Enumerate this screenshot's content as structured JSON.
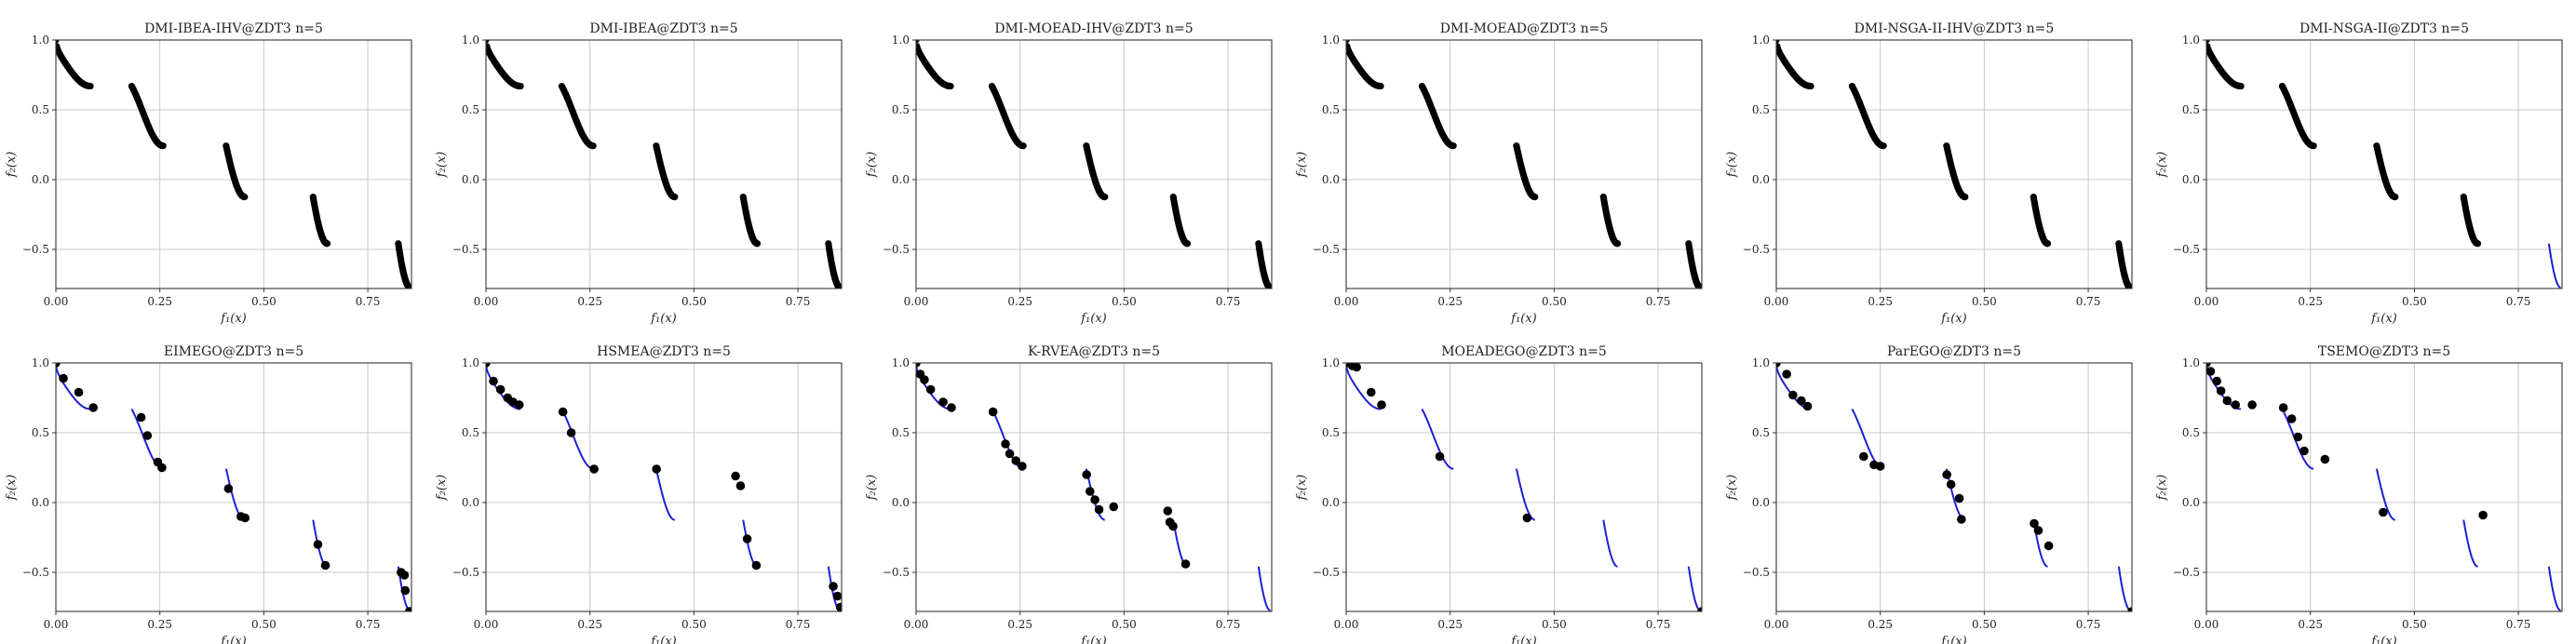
{
  "shared": {
    "xlabel": "f₁(x)",
    "ylabel": "f₂(x)",
    "xticks": [
      "0.00",
      "0.25",
      "0.50",
      "0.75"
    ],
    "yticks": [
      "1.0",
      "0.5",
      "0.0",
      "−0.5"
    ],
    "front_color": "#1f1fd6",
    "point_color": "#000000"
  },
  "chart_data": [
    {
      "type": "scatter",
      "title": "DMI-IBEA-IHV@ZDT3 n=5",
      "xlabel": "f₁(x)",
      "ylabel": "f₂(x)",
      "xlim": [
        0,
        0.855
      ],
      "ylim": [
        -0.78,
        1.0
      ],
      "grid": true,
      "dense_segments": [
        0,
        1,
        2,
        3,
        4
      ],
      "points": []
    },
    {
      "type": "scatter",
      "title": "DMI-IBEA@ZDT3 n=5",
      "xlabel": "f₁(x)",
      "ylabel": "f₂(x)",
      "xlim": [
        0,
        0.855
      ],
      "ylim": [
        -0.78,
        1.0
      ],
      "grid": true,
      "dense_segments": [
        0,
        1,
        2,
        3,
        4
      ],
      "points": []
    },
    {
      "type": "scatter",
      "title": "DMI-MOEAD-IHV@ZDT3 n=5",
      "xlabel": "f₁(x)",
      "ylabel": "f₂(x)",
      "xlim": [
        0,
        0.855
      ],
      "ylim": [
        -0.78,
        1.0
      ],
      "grid": true,
      "dense_segments": [
        0,
        1,
        2,
        3,
        4
      ],
      "points": []
    },
    {
      "type": "scatter",
      "title": "DMI-MOEAD@ZDT3 n=5",
      "xlabel": "f₁(x)",
      "ylabel": "f₂(x)",
      "xlim": [
        0,
        0.855
      ],
      "ylim": [
        -0.78,
        1.0
      ],
      "grid": true,
      "dense_segments": [
        0,
        1,
        2,
        3,
        4
      ],
      "points": []
    },
    {
      "type": "scatter",
      "title": "DMI-NSGA-II-IHV@ZDT3 n=5",
      "xlabel": "f₁(x)",
      "ylabel": "f₂(x)",
      "xlim": [
        0,
        0.855
      ],
      "ylim": [
        -0.78,
        1.0
      ],
      "grid": true,
      "dense_segments": [
        0,
        1,
        2,
        3,
        4
      ],
      "points": []
    },
    {
      "type": "scatter",
      "title": "DMI-NSGA-II@ZDT3 n=5",
      "xlabel": "f₁(x)",
      "ylabel": "f₂(x)",
      "xlim": [
        0,
        0.855
      ],
      "ylim": [
        -0.78,
        1.0
      ],
      "grid": true,
      "dense_segments": [
        0,
        1,
        2,
        3
      ],
      "points": []
    },
    {
      "type": "scatter",
      "title": "EIMEGO@ZDT3 n=5",
      "xlabel": "f₁(x)",
      "ylabel": "f₂(x)",
      "xlim": [
        0,
        0.855
      ],
      "ylim": [
        -0.78,
        1.0
      ],
      "grid": true,
      "dense_segments": [],
      "points": [
        [
          0.0,
          1.0
        ],
        [
          0.018,
          0.89
        ],
        [
          0.055,
          0.79
        ],
        [
          0.09,
          0.68
        ],
        [
          0.205,
          0.61
        ],
        [
          0.22,
          0.48
        ],
        [
          0.245,
          0.29
        ],
        [
          0.255,
          0.25
        ],
        [
          0.415,
          0.1
        ],
        [
          0.445,
          -0.1
        ],
        [
          0.455,
          -0.11
        ],
        [
          0.63,
          -0.3
        ],
        [
          0.648,
          -0.45
        ],
        [
          0.83,
          -0.5
        ],
        [
          0.838,
          -0.52
        ],
        [
          0.84,
          -0.63
        ],
        [
          0.85,
          -0.78
        ]
      ]
    },
    {
      "type": "scatter",
      "title": "HSMEA@ZDT3 n=5",
      "xlabel": "f₁(x)",
      "ylabel": "f₂(x)",
      "xlim": [
        0,
        0.855
      ],
      "ylim": [
        -0.78,
        1.0
      ],
      "grid": true,
      "dense_segments": [],
      "points": [
        [
          0.0,
          1.0
        ],
        [
          0.018,
          0.87
        ],
        [
          0.035,
          0.81
        ],
        [
          0.052,
          0.75
        ],
        [
          0.065,
          0.72
        ],
        [
          0.08,
          0.7
        ],
        [
          0.185,
          0.65
        ],
        [
          0.205,
          0.5
        ],
        [
          0.26,
          0.24
        ],
        [
          0.41,
          0.24
        ],
        [
          0.6,
          0.19
        ],
        [
          0.612,
          0.12
        ],
        [
          0.628,
          -0.26
        ],
        [
          0.65,
          -0.45
        ],
        [
          0.835,
          -0.6
        ],
        [
          0.845,
          -0.67
        ],
        [
          0.852,
          -0.75
        ]
      ]
    },
    {
      "type": "scatter",
      "title": "K-RVEA@ZDT3 n=5",
      "xlabel": "f₁(x)",
      "ylabel": "f₂(x)",
      "xlim": [
        0,
        0.855
      ],
      "ylim": [
        -0.78,
        1.0
      ],
      "grid": true,
      "dense_segments": [],
      "points": [
        [
          0.0,
          1.0
        ],
        [
          0.01,
          0.92
        ],
        [
          0.02,
          0.88
        ],
        [
          0.035,
          0.81
        ],
        [
          0.065,
          0.72
        ],
        [
          0.085,
          0.68
        ],
        [
          0.185,
          0.65
        ],
        [
          0.215,
          0.42
        ],
        [
          0.225,
          0.35
        ],
        [
          0.24,
          0.3
        ],
        [
          0.255,
          0.26
        ],
        [
          0.41,
          0.2
        ],
        [
          0.418,
          0.08
        ],
        [
          0.43,
          0.02
        ],
        [
          0.44,
          -0.05
        ],
        [
          0.475,
          -0.03
        ],
        [
          0.605,
          -0.06
        ],
        [
          0.61,
          -0.14
        ],
        [
          0.618,
          -0.17
        ],
        [
          0.648,
          -0.44
        ]
      ]
    },
    {
      "type": "scatter",
      "title": "MOEADEGO@ZDT3 n=5",
      "xlabel": "f₁(x)",
      "ylabel": "f₂(x)",
      "xlim": [
        0,
        0.855
      ],
      "ylim": [
        -0.78,
        1.0
      ],
      "grid": true,
      "dense_segments": [],
      "points": [
        [
          0.0,
          1.0
        ],
        [
          0.015,
          0.98
        ],
        [
          0.025,
          0.97
        ],
        [
          0.06,
          0.79
        ],
        [
          0.085,
          0.7
        ],
        [
          0.225,
          0.33
        ],
        [
          0.435,
          -0.11
        ],
        [
          0.855,
          -0.78
        ]
      ]
    },
    {
      "type": "scatter",
      "title": "ParEGO@ZDT3 n=5",
      "xlabel": "f₁(x)",
      "ylabel": "f₂(x)",
      "xlim": [
        0,
        0.855
      ],
      "ylim": [
        -0.78,
        1.0
      ],
      "grid": true,
      "dense_segments": [],
      "points": [
        [
          0.0,
          1.0
        ],
        [
          0.025,
          0.92
        ],
        [
          0.04,
          0.77
        ],
        [
          0.06,
          0.73
        ],
        [
          0.075,
          0.69
        ],
        [
          0.21,
          0.33
        ],
        [
          0.235,
          0.27
        ],
        [
          0.25,
          0.26
        ],
        [
          0.41,
          0.2
        ],
        [
          0.42,
          0.13
        ],
        [
          0.44,
          0.03
        ],
        [
          0.445,
          -0.12
        ],
        [
          0.62,
          -0.15
        ],
        [
          0.63,
          -0.2
        ],
        [
          0.655,
          -0.31
        ],
        [
          0.855,
          -0.78
        ]
      ]
    },
    {
      "type": "scatter",
      "title": "TSEMO@ZDT3 n=5",
      "xlabel": "f₁(x)",
      "ylabel": "f₂(x)",
      "xlim": [
        0,
        0.855
      ],
      "ylim": [
        -0.78,
        1.0
      ],
      "grid": true,
      "dense_segments": [],
      "points": [
        [
          0.0,
          1.0
        ],
        [
          0.01,
          0.94
        ],
        [
          0.025,
          0.87
        ],
        [
          0.035,
          0.8
        ],
        [
          0.05,
          0.73
        ],
        [
          0.07,
          0.7
        ],
        [
          0.11,
          0.7
        ],
        [
          0.185,
          0.68
        ],
        [
          0.205,
          0.6
        ],
        [
          0.22,
          0.47
        ],
        [
          0.235,
          0.37
        ],
        [
          0.285,
          0.31
        ],
        [
          0.425,
          -0.07
        ],
        [
          0.665,
          -0.09
        ]
      ]
    }
  ]
}
